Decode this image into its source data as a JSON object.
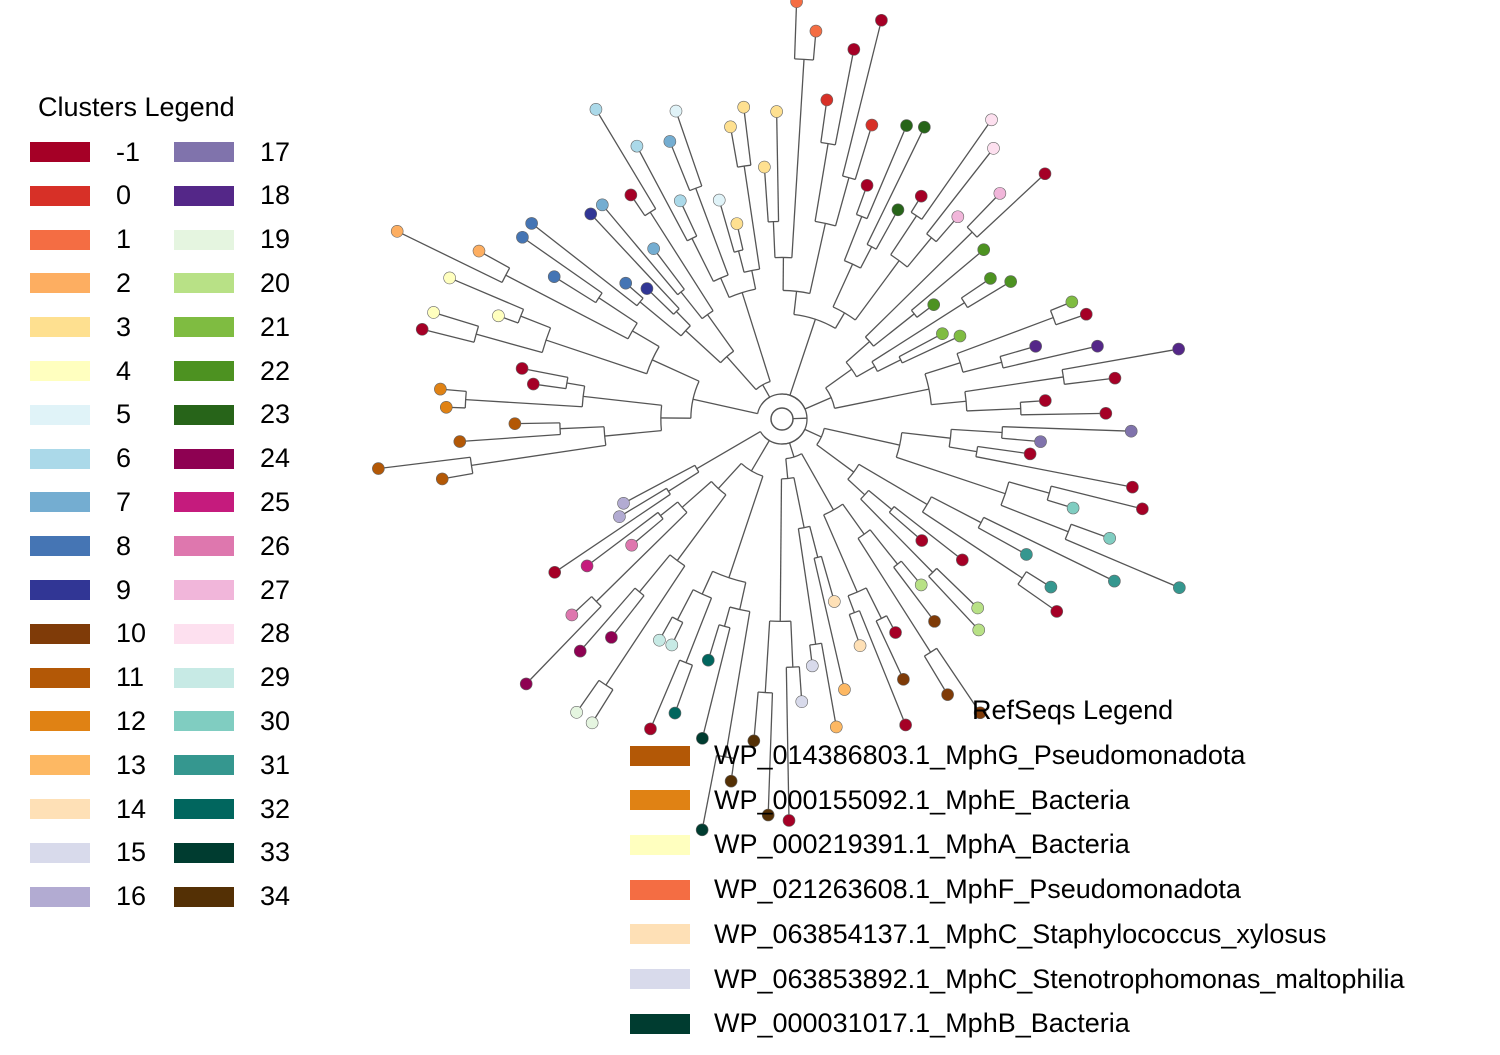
{
  "clusters_legend": {
    "title": "Clusters Legend",
    "items": [
      {
        "label": "-1",
        "color": "#a50026"
      },
      {
        "label": "0",
        "color": "#d73027"
      },
      {
        "label": "1",
        "color": "#f46d43"
      },
      {
        "label": "2",
        "color": "#fdae61"
      },
      {
        "label": "3",
        "color": "#fee090"
      },
      {
        "label": "4",
        "color": "#ffffbf"
      },
      {
        "label": "5",
        "color": "#e0f3f8"
      },
      {
        "label": "6",
        "color": "#abd9e9"
      },
      {
        "label": "7",
        "color": "#74add1"
      },
      {
        "label": "8",
        "color": "#4575b4"
      },
      {
        "label": "9",
        "color": "#313695"
      },
      {
        "label": "10",
        "color": "#7f3b08"
      },
      {
        "label": "11",
        "color": "#b35806"
      },
      {
        "label": "12",
        "color": "#e08214"
      },
      {
        "label": "13",
        "color": "#fdb863"
      },
      {
        "label": "14",
        "color": "#fee0b6"
      },
      {
        "label": "15",
        "color": "#d8daeb"
      },
      {
        "label": "16",
        "color": "#b2abd2"
      },
      {
        "label": "17",
        "color": "#8073ac"
      },
      {
        "label": "18",
        "color": "#542788"
      },
      {
        "label": "19",
        "color": "#e5f5e0"
      },
      {
        "label": "20",
        "color": "#b8e186"
      },
      {
        "label": "21",
        "color": "#7fbc41"
      },
      {
        "label": "22",
        "color": "#4d9221"
      },
      {
        "label": "23",
        "color": "#276419"
      },
      {
        "label": "24",
        "color": "#8e0152"
      },
      {
        "label": "25",
        "color": "#c51b7d"
      },
      {
        "label": "26",
        "color": "#de77ae"
      },
      {
        "label": "27",
        "color": "#f1b6da"
      },
      {
        "label": "28",
        "color": "#fde0ef"
      },
      {
        "label": "29",
        "color": "#c7eae5"
      },
      {
        "label": "30",
        "color": "#80cdc1"
      },
      {
        "label": "31",
        "color": "#35978f"
      },
      {
        "label": "32",
        "color": "#01665e"
      },
      {
        "label": "33",
        "color": "#003c30"
      },
      {
        "label": "34",
        "color": "#543005"
      }
    ]
  },
  "refseqs_legend": {
    "title": "RefSeqs Legend",
    "items": [
      {
        "label": "WP_014386803.1_MphG_Pseudomonadota",
        "color": "#b35806"
      },
      {
        "label": "WP_000155092.1_MphE_Bacteria",
        "color": "#e08214"
      },
      {
        "label": "WP_000219391.1_MphA_Bacteria",
        "color": "#ffffbf"
      },
      {
        "label": "WP_021263608.1_MphF_Pseudomonadota",
        "color": "#f46d43"
      },
      {
        "label": "WP_063854137.1_MphC_Staphylococcus_xylosus",
        "color": "#fee0b6"
      },
      {
        "label": "WP_063853892.1_MphC_Stenotrophomonas_maltophilia",
        "color": "#d8daeb"
      },
      {
        "label": "WP_000031017.1_MphB_Bacteria",
        "color": "#003c30"
      }
    ]
  },
  "tree": {
    "layout": "circular",
    "branch_color": "#555555",
    "leaf_clusters": [
      "11",
      "11",
      "11",
      "11",
      "12",
      "12",
      "-1",
      "-1",
      "-1",
      "4",
      "4",
      "4",
      "2",
      "2",
      "8",
      "8",
      "8",
      "8",
      "9",
      "9",
      "7",
      "7",
      "-1",
      "6",
      "6",
      "6",
      "7",
      "5",
      "5",
      "3",
      "3",
      "3",
      "3",
      "3",
      "1",
      "1",
      "0",
      "-1",
      "-1",
      "0",
      "-1",
      "23",
      "23",
      "23",
      "-1",
      "28",
      "28",
      "27",
      "27",
      "-1",
      "22",
      "22",
      "22",
      "22",
      "21",
      "21",
      "21",
      "-1",
      "18",
      "18",
      "18",
      "-1",
      "-1",
      "-1",
      "17",
      "17",
      "-1",
      "-1",
      "-1",
      "30",
      "30",
      "31",
      "31",
      "31",
      "31",
      "-1",
      "-1",
      "-1",
      "20",
      "20",
      "20",
      "10",
      "10",
      "10",
      "-1",
      "10",
      "-1",
      "14",
      "14",
      "13",
      "13",
      "15",
      "15",
      "-1",
      "34",
      "34",
      "34",
      "33",
      "33",
      "32",
      "32",
      "-1",
      "29",
      "29",
      "19",
      "19",
      "24",
      "24",
      "24",
      "26",
      "26",
      "25",
      "-1",
      "16",
      "16"
    ]
  }
}
